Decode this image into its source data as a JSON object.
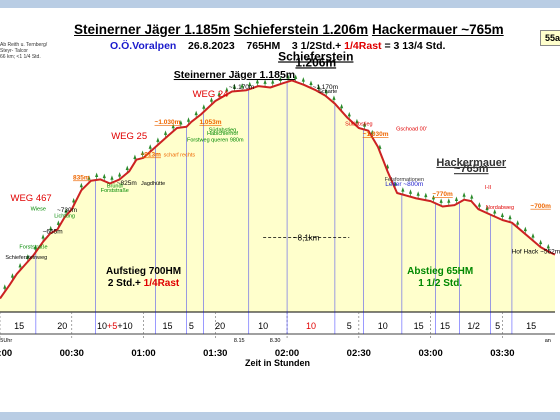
{
  "header": {
    "peaks": [
      "Steinerner Jäger 1.185m",
      "Schieferstein 1.206m",
      "Hackermauer ~765m"
    ],
    "region": "O.Ö.Voralpen",
    "date": "26.8.2023",
    "elevation_gain": "765HM",
    "duration_a": "3 1/2Std.+",
    "duration_b": "1/4Rast",
    "duration_c": "= 3 13/4 Std.",
    "badge": "55a",
    "route": [
      "Ab Reith u. Ternberg/",
      "Steyr- Talcor",
      "66 km; <1 1/4 Std."
    ]
  },
  "chart_data": {
    "type": "area",
    "xlabel": "Zeit in Stunden",
    "x_unit": "minutes",
    "xlim": [
      0,
      232
    ],
    "ylim": [
      350,
      1300
    ],
    "x_ticks": [
      {
        "label": "00:00",
        "x": 0
      },
      {
        "label": "00:30",
        "x": 30
      },
      {
        "label": "01:00",
        "x": 60
      },
      {
        "label": "01:30",
        "x": 90
      },
      {
        "label": "02:00",
        "x": 120
      },
      {
        "label": "02:30",
        "x": 150
      },
      {
        "label": "03:00",
        "x": 180
      },
      {
        "label": "03:30",
        "x": 210
      }
    ],
    "profile": [
      [
        0,
        400
      ],
      [
        4,
        450
      ],
      [
        7,
        490
      ],
      [
        10,
        520
      ],
      [
        14,
        560
      ],
      [
        18,
        610
      ],
      [
        21,
        640
      ],
      [
        24,
        655
      ],
      [
        27,
        700
      ],
      [
        30,
        730
      ],
      [
        34,
        800
      ],
      [
        38,
        835
      ],
      [
        42,
        840
      ],
      [
        46,
        825
      ],
      [
        50,
        840
      ],
      [
        54,
        870
      ],
      [
        57,
        913
      ],
      [
        60,
        920
      ],
      [
        65,
        960
      ],
      [
        70,
        1000
      ],
      [
        74,
        1030
      ],
      [
        78,
        1035
      ],
      [
        80,
        1053
      ],
      [
        84,
        1080
      ],
      [
        90,
        1130
      ],
      [
        97,
        1165
      ],
      [
        103,
        1170
      ],
      [
        108,
        1185
      ],
      [
        113,
        1180
      ],
      [
        118,
        1195
      ],
      [
        122,
        1206
      ],
      [
        127,
        1190
      ],
      [
        132,
        1170
      ],
      [
        136,
        1150
      ],
      [
        140,
        1120
      ],
      [
        145,
        1070
      ],
      [
        150,
        1030
      ],
      [
        154,
        1020
      ],
      [
        158,
        960
      ],
      [
        162,
        870
      ],
      [
        166,
        790
      ],
      [
        170,
        780
      ],
      [
        174,
        770
      ],
      [
        180,
        760
      ],
      [
        185,
        740
      ],
      [
        190,
        745
      ],
      [
        194,
        765
      ],
      [
        197,
        760
      ],
      [
        200,
        730
      ],
      [
        205,
        710
      ],
      [
        210,
        690
      ],
      [
        214,
        680
      ],
      [
        218,
        650
      ],
      [
        222,
        620
      ],
      [
        226,
        590
      ],
      [
        230,
        570
      ],
      [
        232,
        562
      ]
    ],
    "segment_minutes": [
      {
        "label": "15",
        "x": 8
      },
      {
        "label": "20",
        "x": 26
      },
      {
        "label": "10+5+10",
        "x": 48,
        "red": "5"
      },
      {
        "label": "15",
        "x": 70
      },
      {
        "label": "5",
        "x": 80
      },
      {
        "label": "20",
        "x": 92
      },
      {
        "label": "10",
        "x": 110
      },
      {
        "label": "10",
        "x": 130
      },
      {
        "label": "5",
        "x": 146
      },
      {
        "label": "10",
        "x": 160
      },
      {
        "label": "15",
        "x": 175
      },
      {
        "label": "15",
        "x": 186
      },
      {
        "label": "1/2",
        "x": 198
      },
      {
        "label": "5",
        "x": 208
      },
      {
        "label": "15",
        "x": 222
      }
    ],
    "annotations": {
      "peaks": [
        {
          "text": "Steinerner Jäger 1.185m",
          "x": 98,
          "y": 1215,
          "color": "#000000",
          "bold": true,
          "underline": true,
          "size": 10.5
        },
        {
          "text": "Schieferstein",
          "x": 132,
          "y": 1280,
          "color": "#000000",
          "bold": true,
          "underline": true,
          "size": 12
        },
        {
          "text": "1.206m",
          "x": 132,
          "y": 1258,
          "color": "#000000",
          "bold": true,
          "underline": true,
          "size": 12
        },
        {
          "text": "Hackermauer",
          "x": 197,
          "y": 890,
          "color": "#333333",
          "bold": true,
          "underline": true,
          "size": 11
        },
        {
          "text": "~765m",
          "x": 197,
          "y": 867,
          "color": "#333333",
          "bold": true,
          "underline": true,
          "size": 11
        }
      ],
      "red_labels": [
        {
          "text": "WEG 467",
          "x": 13,
          "y": 760
        },
        {
          "text": "WEG 25",
          "x": 54,
          "y": 990
        },
        {
          "text": "WEG 24",
          "x": 88,
          "y": 1145
        }
      ],
      "elevations": [
        {
          "text": "835m",
          "x": 34,
          "y": 840,
          "color": "#ee6600"
        },
        {
          "text": "~913m",
          "x": 63,
          "y": 925,
          "color": "#ee6600"
        },
        {
          "text": "~1.030m",
          "x": 70,
          "y": 1045,
          "color": "#ee6600"
        },
        {
          "text": "1.053m",
          "x": 88,
          "y": 1045,
          "color": "#ee6600"
        },
        {
          "text": "~1.030m",
          "x": 157,
          "y": 1000,
          "color": "#ee6600"
        },
        {
          "text": "~770m",
          "x": 185,
          "y": 778,
          "color": "#ee6600"
        },
        {
          "text": "~700m",
          "x": 226,
          "y": 735,
          "color": "#ee6600"
        },
        {
          "text": "~1.170m",
          "x": 101,
          "y": 1175,
          "color": "#000000"
        },
        {
          "text": "~1.170m",
          "x": 136,
          "y": 1175,
          "color": "#000000"
        },
        {
          "text": "~825m",
          "x": 53,
          "y": 820,
          "color": "#000000"
        },
        {
          "text": "~730m",
          "x": 28,
          "y": 720,
          "color": "#000000"
        },
        {
          "text": "~655m",
          "x": 22,
          "y": 640,
          "color": "#000000"
        },
        {
          "text": "Leiter ~800m",
          "x": 169,
          "y": 815,
          "color": "#1a1acc"
        },
        {
          "text": "Hof Hack ~562m",
          "x": 224,
          "y": 567,
          "color": "#000000"
        }
      ],
      "places": [
        {
          "text": "Wiese",
          "x": 16,
          "y": 725,
          "color": "#008800"
        },
        {
          "text": "Lichtung",
          "x": 27,
          "y": 700,
          "color": "#008800"
        },
        {
          "text": "Forststraße",
          "x": 14,
          "y": 585,
          "color": "#008800"
        },
        {
          "text": "Schiefersteinweg",
          "x": 11,
          "y": 545,
          "color": "#000000"
        },
        {
          "text": "Bründl",
          "x": 48,
          "y": 810,
          "color": "#008800"
        },
        {
          "text": "Forststraße",
          "x": 48,
          "y": 793,
          "color": "#008800"
        },
        {
          "text": "Jagdhütte",
          "x": 64,
          "y": 820,
          "color": "#000000"
        },
        {
          "text": "scharf rechts",
          "x": 75,
          "y": 925,
          "color": "#ee6600"
        },
        {
          "text": "Forstweg queren 980m",
          "x": 90,
          "y": 980,
          "color": "#008800"
        },
        {
          "text": "Südabstieg",
          "x": 93,
          "y": 1018,
          "color": "#008800"
        },
        {
          "text": "Habichlerhof",
          "x": 93,
          "y": 1004,
          "color": "#008800"
        },
        {
          "text": "Scharte",
          "x": 137,
          "y": 1160,
          "color": "#000000"
        },
        {
          "text": "Südabstieg",
          "x": 150,
          "y": 1040,
          "color": "#e00000"
        },
        {
          "text": "Gschoad 00'",
          "x": 172,
          "y": 1020,
          "color": "#e00000"
        },
        {
          "text": "Felsformationen",
          "x": 169,
          "y": 835,
          "color": "#333333"
        },
        {
          "text": "I-II",
          "x": 204,
          "y": 805,
          "color": "#e00000"
        },
        {
          "text": "Nordabweg",
          "x": 209,
          "y": 730,
          "color": "#e00000"
        }
      ],
      "distance": {
        "text": "~8,1km",
        "x_from": 110,
        "x_to": 146,
        "y": 625
      },
      "ascent": {
        "title": "Aufstieg 700HM",
        "line": "2 Std.+",
        "red": "1/4Rast",
        "x": 60,
        "y": 490
      },
      "descent": {
        "title": "Abstieg 65HM",
        "line": "1 1/2 Std.",
        "x": 184,
        "y": 490
      },
      "time_marks": [
        {
          "text": "8.35Uhr",
          "x": 1
        },
        {
          "text": "8.15",
          "x": 100
        },
        {
          "text": "8.30",
          "x": 115
        },
        {
          "text": "an",
          "x": 229
        }
      ]
    },
    "colors": {
      "area": "#ffffcc",
      "line": "#cc2222",
      "tree": "#2a8a2a",
      "segment_line": "#0000ff"
    }
  }
}
